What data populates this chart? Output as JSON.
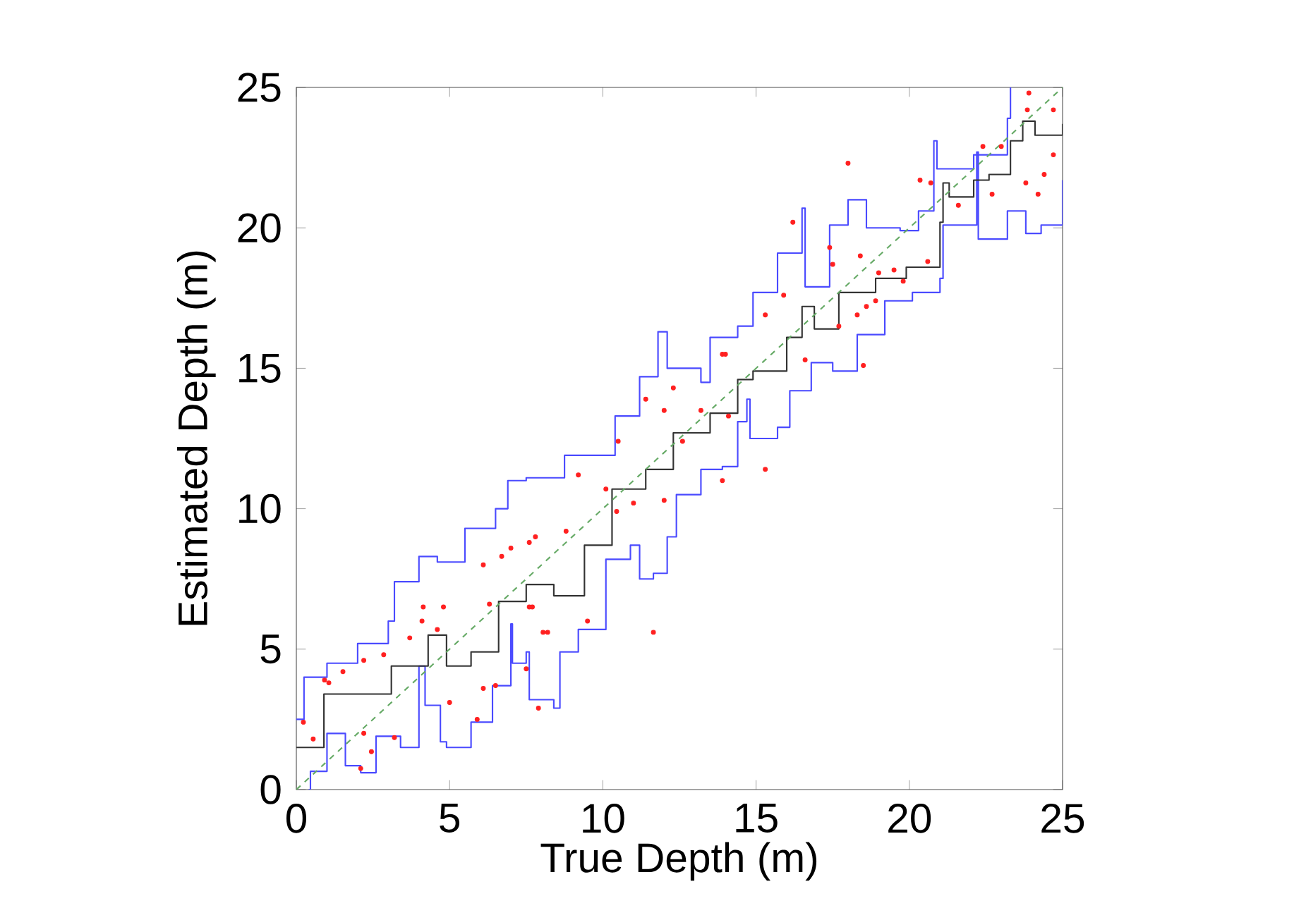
{
  "chart_data": {
    "type": "step",
    "xlabel": "True Depth (m)",
    "ylabel": "Estimated Depth (m)",
    "xlim": [
      0,
      25
    ],
    "ylim": [
      0,
      25
    ],
    "xticks": [
      0,
      5,
      10,
      15,
      20,
      25
    ],
    "yticks": [
      0,
      5,
      10,
      15,
      20,
      25
    ],
    "grid": false,
    "series": [
      {
        "color": "#4a4aff",
        "x": [
          0,
          0.25,
          1,
          2,
          3,
          3.2,
          4,
          4.6,
          5.5,
          6.5,
          6.9,
          7.5,
          8.75,
          10.4,
          11.2,
          11.8,
          12.1,
          13.2,
          13.5,
          14.4,
          14.9,
          15.7,
          16.5,
          16.6,
          17.4,
          18,
          18.6,
          19.7,
          20.3,
          20.8,
          20.9,
          22.1,
          23.2,
          23.3
        ],
        "values": [
          2.5,
          4.0,
          4.5,
          5.2,
          6.0,
          7.4,
          8.3,
          8.1,
          9.3,
          10.0,
          11.0,
          11.1,
          11.9,
          13.3,
          14.7,
          16.3,
          15.0,
          14.5,
          16.1,
          16.5,
          17.7,
          19.1,
          20.7,
          17.9,
          20.1,
          21.0,
          20.0,
          19.9,
          20.6,
          23.1,
          22.1,
          22.6,
          23.9,
          25
        ]
      },
      {
        "color": "#4a4aff",
        "x": [
          0.4,
          0.46,
          1.0,
          1.6,
          2.1,
          2.6,
          3.4,
          4.0,
          4.2,
          4.7,
          4.9,
          5.7,
          6.4,
          7.0,
          7.05,
          7.5,
          7.6,
          8.4,
          8.6,
          9.2,
          10.1,
          10.9,
          11.2,
          11.65,
          12.1,
          12.4,
          13.2,
          13.9,
          14.4,
          14.7,
          14.8,
          15.7,
          16.1,
          16.8,
          17.5,
          18.3,
          19.2,
          20.1,
          21.0,
          21.1,
          22.2,
          22.25,
          23.2,
          23.8,
          24.3,
          25
        ],
        "values": [
          0,
          0.65,
          2.0,
          0.85,
          0.6,
          1.9,
          1.5,
          4.4,
          3.0,
          1.7,
          1.5,
          2.4,
          3.7,
          5.9,
          4.5,
          4.9,
          3.2,
          2.9,
          4.9,
          5.7,
          8.2,
          8.7,
          7.5,
          7.7,
          9.0,
          10.5,
          11.4,
          11.5,
          13.1,
          13.9,
          12.5,
          12.9,
          14.2,
          15.2,
          14.9,
          16.2,
          17.4,
          17.7,
          18.2,
          20.1,
          22.7,
          19.6,
          20.6,
          19.8,
          20.1,
          21.7
        ]
      },
      {
        "color": "#333333",
        "x": [
          0,
          0.9,
          2.0,
          3.1,
          4.3,
          4.9,
          5.7,
          6.6,
          7.5,
          8.4,
          9.4,
          10.3,
          11.4,
          12.3,
          13.5,
          14.4,
          14.9,
          16.0,
          16.5,
          16.9,
          17.7,
          18.9,
          19.9,
          21.0,
          21.1,
          21.3,
          22.1,
          22.6,
          23.3,
          23.7,
          24.1,
          25
        ],
        "values": [
          1.5,
          3.4,
          3.4,
          4.4,
          5.5,
          4.4,
          4.9,
          6.7,
          7.3,
          6.9,
          8.7,
          10.7,
          11.4,
          12.7,
          13.4,
          14.6,
          14.9,
          16.1,
          17.2,
          16.4,
          17.7,
          18.2,
          18.6,
          20.2,
          21.6,
          21.1,
          21.7,
          21.9,
          23.1,
          23.8,
          23.3,
          23.7
        ]
      },
      {
        "type": "line",
        "color": "#66aa66",
        "line_style": "dashed",
        "x": [
          0,
          25
        ],
        "values": [
          0,
          25
        ]
      },
      {
        "type": "scatter",
        "color": "#ff2020",
        "marker": "circle",
        "x": [
          0.23,
          0.92,
          1.06,
          0.55,
          1.52,
          2.2,
          2.85,
          3.7,
          4.1,
          4.6,
          4.14,
          4.8,
          2.2,
          2.45,
          3.2,
          5.0,
          5.9,
          6.1,
          6.5,
          6.1,
          6.3,
          7.0,
          7.6,
          7.8,
          7.5,
          7.9,
          8.05,
          7.6,
          2.1,
          6.7,
          9.2,
          10.1,
          10.5,
          11.0,
          11.4,
          12.0,
          12.3,
          12.6,
          12.0,
          13.2,
          13.9,
          14.1,
          13.9,
          11.65,
          10.45,
          9.5,
          8.2,
          7.7,
          8.8,
          15.3,
          14.0,
          15.3,
          15.9,
          16.6,
          17.5,
          17.7,
          18.4,
          18.6,
          19.0,
          19.5,
          16.2,
          17.4,
          19.8,
          18.0,
          20.35,
          20.7,
          20.6,
          18.9,
          18.3,
          18.5,
          21.6,
          22.4,
          22.7,
          23.0,
          23.85,
          23.9,
          23.8,
          24.2,
          24.7,
          24.4,
          24.7
        ],
        "values": [
          2.4,
          3.9,
          3.8,
          1.8,
          4.2,
          4.6,
          4.8,
          5.4,
          6.0,
          5.7,
          6.5,
          6.5,
          2.0,
          1.35,
          1.85,
          3.1,
          2.5,
          3.6,
          3.7,
          8.0,
          6.6,
          8.6,
          8.8,
          9.0,
          4.3,
          2.9,
          5.6,
          6.5,
          0.75,
          8.3,
          11.2,
          10.7,
          12.4,
          10.2,
          13.9,
          13.5,
          14.3,
          12.4,
          10.3,
          13.5,
          15.5,
          13.3,
          11.0,
          5.6,
          9.9,
          6.0,
          5.6,
          6.5,
          9.2,
          11.4,
          15.5,
          16.9,
          17.6,
          15.3,
          18.7,
          16.5,
          19.0,
          17.2,
          18.4,
          18.5,
          20.2,
          19.3,
          18.1,
          22.3,
          21.7,
          21.6,
          18.8,
          17.4,
          16.9,
          15.1,
          20.8,
          22.9,
          21.2,
          22.9,
          24.2,
          24.8,
          21.6,
          21.2,
          22.6,
          21.9,
          24.2
        ]
      }
    ]
  }
}
